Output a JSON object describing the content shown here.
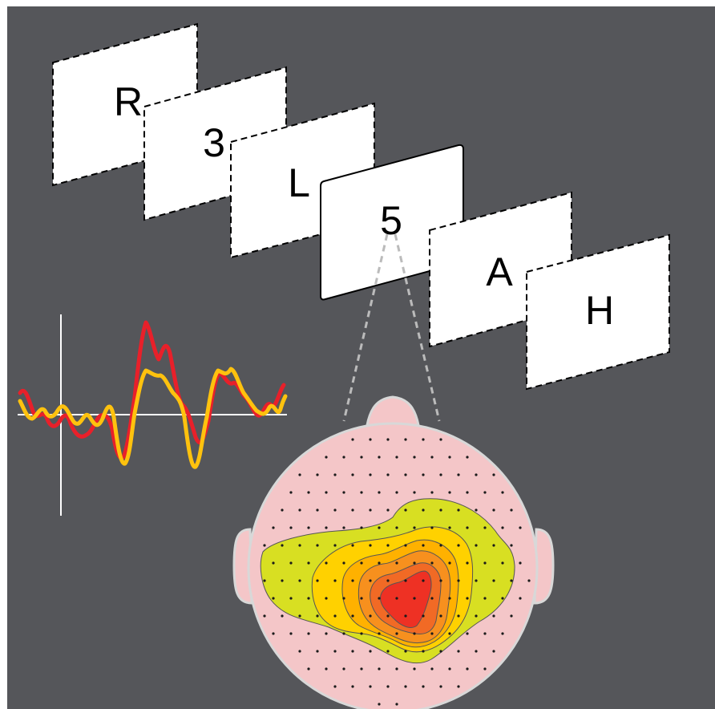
{
  "background_color": "#55565a",
  "stimulus_cards": [
    {
      "label": "R",
      "style": "dashed"
    },
    {
      "label": "3",
      "style": "dashed"
    },
    {
      "label": "L",
      "style": "dashed"
    },
    {
      "label": "5",
      "style": "solid"
    },
    {
      "label": "A",
      "style": "dashed"
    },
    {
      "label": "H",
      "style": "dashed"
    }
  ],
  "erp_waveform": {
    "series_colors": [
      "#e8202a",
      "#ffc20e"
    ],
    "axis_color": "#ffffff"
  },
  "scalp_map": {
    "head_color": "#f4c6c8",
    "contour_colors": [
      "#d8df22",
      "#ffd100",
      "#ffb100",
      "#f7901e",
      "#f16a25",
      "#ee3124"
    ],
    "electrode_color": "#1a1a1a"
  }
}
